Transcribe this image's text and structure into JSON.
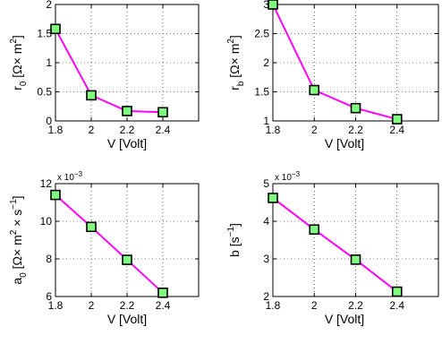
{
  "chart_data": [
    {
      "type": "line",
      "x": [
        1.8,
        2.0,
        2.2,
        2.4
      ],
      "series": [
        {
          "values": [
            1.58,
            0.44,
            0.17,
            0.15
          ]
        }
      ],
      "xlabel": "V [Volt]",
      "ylabel": {
        "main": "r",
        "sub": "0",
        "unit_pre": " [Ω× m",
        "unit_sup": "2",
        "unit_post": "]"
      },
      "xlim": [
        1.8,
        2.6
      ],
      "ylim": [
        0,
        2
      ],
      "xticks": [
        1.8,
        2.0,
        2.2,
        2.4
      ],
      "xtick_labels": [
        "1.8",
        "2",
        "2.2",
        "2.4"
      ],
      "yticks": [
        0,
        0.5,
        1,
        1.5,
        2
      ],
      "ytick_labels": [
        "0",
        "0.5",
        "1",
        "1.5",
        "2"
      ],
      "multiplier": "",
      "grid": true,
      "line_color": "#ff00ff",
      "marker_color": "#80ff80"
    },
    {
      "type": "line",
      "x": [
        1.8,
        2.0,
        2.2,
        2.4
      ],
      "series": [
        {
          "values": [
            3.0,
            1.53,
            1.22,
            1.03
          ]
        }
      ],
      "xlabel": "V [Volt]",
      "ylabel": {
        "main": "r",
        "sub": "b",
        "unit_pre": " [Ω× m",
        "unit_sup": "2",
        "unit_post": "]"
      },
      "xlim": [
        1.8,
        2.6
      ],
      "ylim": [
        1,
        3
      ],
      "xticks": [
        1.8,
        2.0,
        2.2,
        2.4
      ],
      "xtick_labels": [
        "1.8",
        "2",
        "2.2",
        "2.4"
      ],
      "yticks": [
        1,
        1.5,
        2,
        2.5,
        3
      ],
      "ytick_labels": [
        "1",
        "1.5",
        "2",
        "2.5",
        "3"
      ],
      "multiplier": "",
      "grid": true,
      "line_color": "#ff00ff",
      "marker_color": "#80ff80"
    },
    {
      "type": "line",
      "x": [
        1.8,
        2.0,
        2.2,
        2.4
      ],
      "series": [
        {
          "values": [
            11.4,
            9.7,
            7.95,
            6.2
          ]
        }
      ],
      "xlabel": "V [Volt]",
      "ylabel": {
        "main": "a",
        "sub": "0",
        "unit_pre": " [Ω× m",
        "unit_sup": "2",
        "unit_post": " × s",
        "unit_sup2": "−1",
        "unit_end": "]"
      },
      "xlim": [
        1.8,
        2.6
      ],
      "ylim": [
        6,
        12
      ],
      "xticks": [
        1.8,
        2.0,
        2.2,
        2.4
      ],
      "xtick_labels": [
        "1.8",
        "2",
        "2.2",
        "2.4"
      ],
      "yticks": [
        6,
        8,
        10,
        12
      ],
      "ytick_labels": [
        "6",
        "8",
        "10",
        "12"
      ],
      "multiplier": {
        "base": "x 10",
        "exp": "−3"
      },
      "grid": true,
      "line_color": "#ff00ff",
      "marker_color": "#80ff80"
    },
    {
      "type": "line",
      "x": [
        1.8,
        2.0,
        2.2,
        2.4
      ],
      "series": [
        {
          "values": [
            4.62,
            3.78,
            2.98,
            2.13
          ]
        }
      ],
      "xlabel": "V [Volt]",
      "ylabel": {
        "main": "b [s",
        "sup": "−1",
        "end": "]"
      },
      "xlim": [
        1.8,
        2.6
      ],
      "ylim": [
        2,
        5
      ],
      "xticks": [
        1.8,
        2.0,
        2.2,
        2.4
      ],
      "xtick_labels": [
        "1.8",
        "2",
        "2.2",
        "2.4"
      ],
      "yticks": [
        2,
        3,
        4,
        5
      ],
      "ytick_labels": [
        "2",
        "3",
        "4",
        "5"
      ],
      "multiplier": {
        "base": "x 10",
        "exp": "−3"
      },
      "grid": true,
      "line_color": "#ff00ff",
      "marker_color": "#80ff80"
    }
  ]
}
